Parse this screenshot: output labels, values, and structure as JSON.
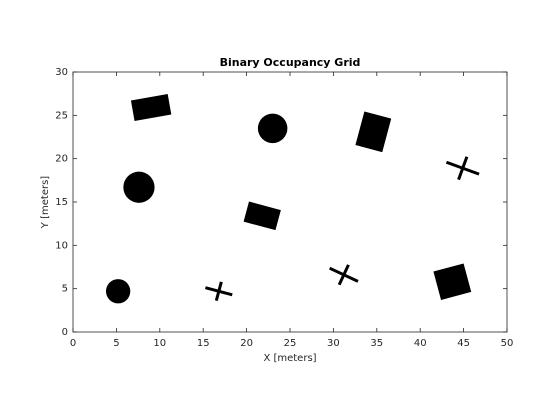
{
  "chart_data": {
    "type": "occupancy",
    "title": "Binary Occupancy Grid",
    "x_label": "X [meters]",
    "y_label": "Y [meters]",
    "xlim": [
      0,
      50
    ],
    "ylim": [
      0,
      30
    ],
    "xticks": [
      0,
      5,
      10,
      15,
      20,
      25,
      30,
      35,
      40,
      45,
      50
    ],
    "yticks": [
      0,
      5,
      10,
      15,
      20,
      25,
      30
    ],
    "color": "#000000",
    "obstacles": [
      {
        "shape": "rect",
        "x": 9.0,
        "y": 25.9,
        "w": 4.3,
        "h": 2.4,
        "angle": 10
      },
      {
        "shape": "circle",
        "x": 23.0,
        "y": 23.5,
        "r": 1.7
      },
      {
        "shape": "rect",
        "x": 34.6,
        "y": 23.1,
        "w": 3.2,
        "h": 4.0,
        "angle": -15
      },
      {
        "shape": "cross",
        "x": 44.9,
        "y": 18.9,
        "w": 4.0,
        "angle": -20
      },
      {
        "shape": "circle",
        "x": 7.6,
        "y": 16.7,
        "r": 1.8
      },
      {
        "shape": "rect",
        "x": 21.8,
        "y": 13.4,
        "w": 3.8,
        "h": 2.4,
        "angle": -15
      },
      {
        "shape": "circle",
        "x": 5.2,
        "y": 4.7,
        "r": 1.4
      },
      {
        "shape": "cross",
        "x": 16.8,
        "y": 4.7,
        "w": 3.2,
        "angle": -15
      },
      {
        "shape": "cross",
        "x": 31.2,
        "y": 6.6,
        "w": 3.6,
        "angle": -25
      },
      {
        "shape": "rect",
        "x": 43.7,
        "y": 5.8,
        "w": 3.6,
        "h": 3.4,
        "angle": 15
      }
    ]
  }
}
